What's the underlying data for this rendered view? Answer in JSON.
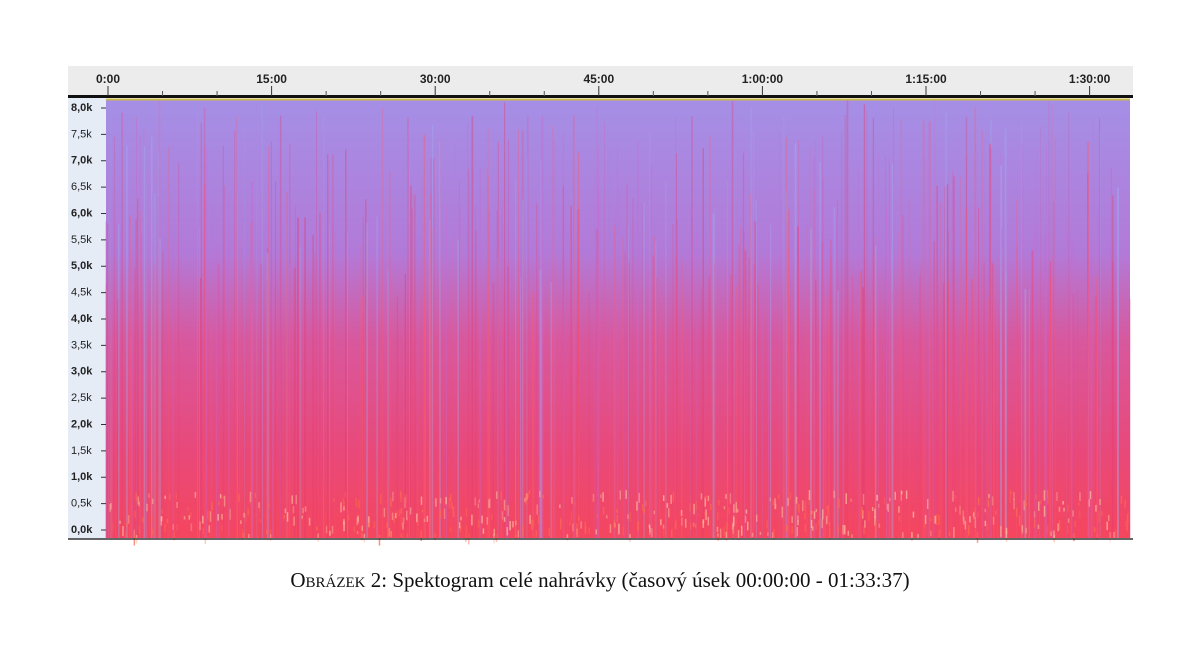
{
  "figure": {
    "time_ruler": {
      "labels": [
        "0:00",
        "15:00",
        "30:00",
        "45:00",
        "1:00:00",
        "1:15:00",
        "1:30:00"
      ]
    },
    "frequency_axis": {
      "labels": [
        "8,0k",
        "7,5k",
        "7,0k",
        "6,5k",
        "6,0k",
        "5,5k",
        "5,0k",
        "4,5k",
        "4,0k",
        "3,5k",
        "3,0k",
        "2,5k",
        "2,0k",
        "1,5k",
        "1,0k",
        "0,5k",
        "0,0k"
      ]
    },
    "caption": {
      "label": "Obrázek 2:",
      "text": "Spektogram celé nahrávky (časový úsek 00:00:00 - 01:33:37)"
    }
  }
}
